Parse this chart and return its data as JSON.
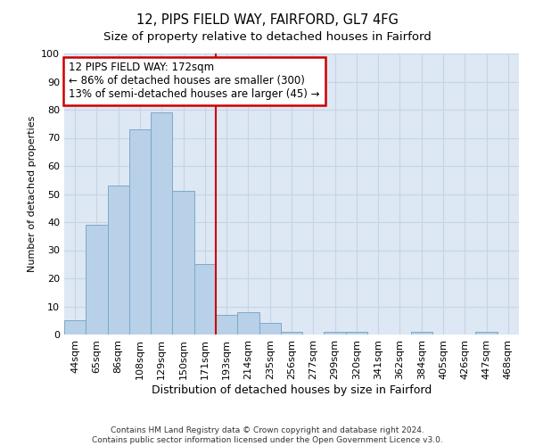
{
  "title": "12, PIPS FIELD WAY, FAIRFORD, GL7 4FG",
  "subtitle": "Size of property relative to detached houses in Fairford",
  "xlabel": "Distribution of detached houses by size in Fairford",
  "ylabel": "Number of detached properties",
  "categories": [
    "44sqm",
    "65sqm",
    "86sqm",
    "108sqm",
    "129sqm",
    "150sqm",
    "171sqm",
    "193sqm",
    "214sqm",
    "235sqm",
    "256sqm",
    "277sqm",
    "299sqm",
    "320sqm",
    "341sqm",
    "362sqm",
    "384sqm",
    "405sqm",
    "426sqm",
    "447sqm",
    "468sqm"
  ],
  "values": [
    5,
    39,
    53,
    73,
    79,
    51,
    25,
    7,
    8,
    4,
    1,
    0,
    1,
    1,
    0,
    0,
    1,
    0,
    0,
    1,
    0
  ],
  "bar_color": "#b8d0e8",
  "bar_edge_color": "#7aaac8",
  "marker_line_index": 6,
  "marker_label": "12 PIPS FIELD WAY: 172sqm",
  "annotation_line1": "← 86% of detached houses are smaller (300)",
  "annotation_line2": "13% of semi-detached houses are larger (45) →",
  "annotation_box_color": "#ffffff",
  "annotation_box_edge": "#cc0000",
  "marker_line_color": "#cc0000",
  "ylim": [
    0,
    100
  ],
  "yticks": [
    0,
    10,
    20,
    30,
    40,
    50,
    60,
    70,
    80,
    90,
    100
  ],
  "grid_color": "#c8d4e4",
  "bg_color": "#dde8f4",
  "footer_line1": "Contains HM Land Registry data © Crown copyright and database right 2024.",
  "footer_line2": "Contains public sector information licensed under the Open Government Licence v3.0.",
  "title_fontsize": 10.5,
  "subtitle_fontsize": 9.5,
  "xlabel_fontsize": 9,
  "ylabel_fontsize": 8,
  "tick_fontsize": 8,
  "annot_fontsize": 8.5,
  "footer_fontsize": 6.5
}
